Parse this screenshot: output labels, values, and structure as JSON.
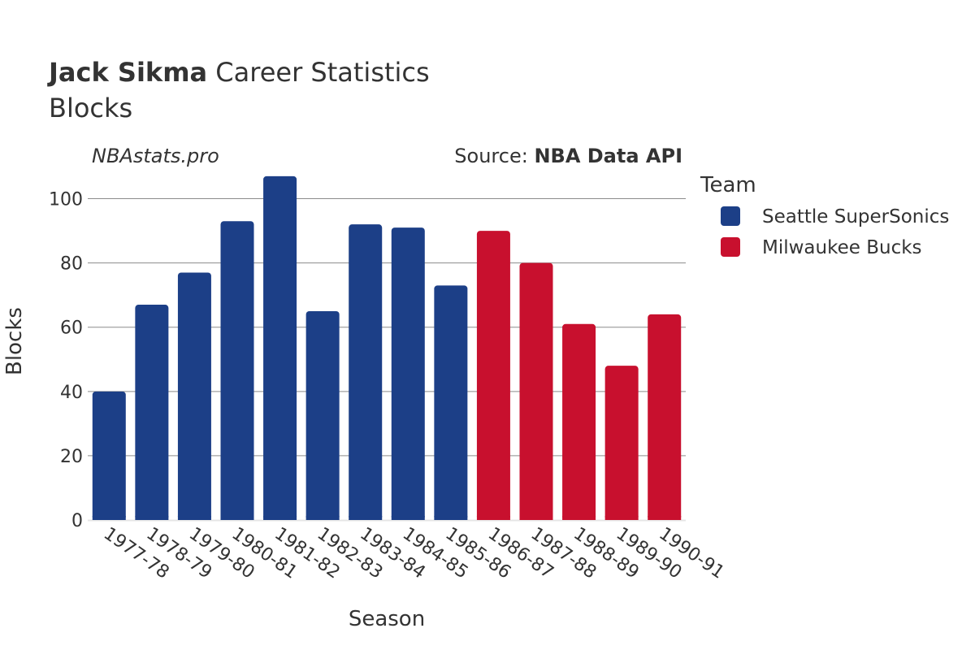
{
  "header": {
    "title_bold": "Jack Sikma",
    "title_rest": " Career Statistics",
    "subtitle": "Blocks"
  },
  "watermark": "NBAstats.pro",
  "source": {
    "prefix": "Source: ",
    "name": "NBA Data API"
  },
  "legend": {
    "title": "Team",
    "items": [
      {
        "label": "Seattle SuperSonics",
        "color": "#1c3f87"
      },
      {
        "label": "Milwaukee Bucks",
        "color": "#c8102e"
      }
    ]
  },
  "chart_data": {
    "type": "bar",
    "xlabel": "Season",
    "ylabel": "Blocks",
    "ylim": [
      0,
      110
    ],
    "yticks": [
      0,
      20,
      40,
      60,
      80,
      100
    ],
    "grid": true,
    "legend_position": "right",
    "categories": [
      "1977-78",
      "1978-79",
      "1979-80",
      "1980-81",
      "1981-82",
      "1982-83",
      "1983-84",
      "1984-85",
      "1985-86",
      "1986-87",
      "1987-88",
      "1988-89",
      "1989-90",
      "1990-91"
    ],
    "series": [
      {
        "name": "Seattle SuperSonics",
        "color": "#1c3f87",
        "values": [
          40,
          67,
          77,
          93,
          107,
          65,
          92,
          91,
          73,
          null,
          null,
          null,
          null,
          null
        ]
      },
      {
        "name": "Milwaukee Bucks",
        "color": "#c8102e",
        "values": [
          null,
          null,
          null,
          null,
          null,
          null,
          null,
          null,
          null,
          90,
          80,
          61,
          48,
          64
        ]
      }
    ]
  }
}
